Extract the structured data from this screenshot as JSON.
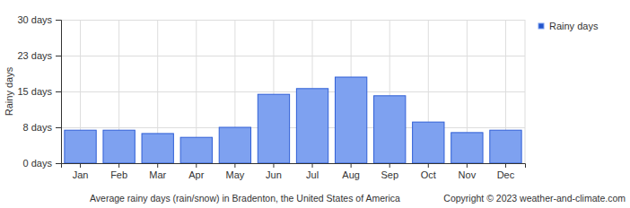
{
  "chart_data": {
    "type": "bar",
    "title": "Average rainy days (rain/snow) in Bradenton, the United States of America",
    "annotation": "Copyright © 2023  weather-and-climate.com",
    "y_label": "Rainy days",
    "categories": [
      "Jan",
      "Feb",
      "Mar",
      "Apr",
      "May",
      "Jun",
      "Jul",
      "Aug",
      "Sep",
      "Oct",
      "Nov",
      "Dec"
    ],
    "series": [
      {
        "name": "Rainy days",
        "color": "#7ea1f0",
        "values": [
          6.9,
          6.9,
          6.2,
          5.4,
          7.5,
          14.4,
          15.6,
          18.0,
          14.1,
          8.6,
          6.4,
          6.9
        ]
      }
    ],
    "ylim": [
      0,
      30
    ],
    "yticks": [
      {
        "value": 0,
        "label": "0 days"
      },
      {
        "value": 7.5,
        "label": "8 days"
      },
      {
        "value": 15,
        "label": "15 days"
      },
      {
        "value": 22.5,
        "label": "23 days"
      },
      {
        "value": 30,
        "label": "30 days"
      }
    ],
    "grid": true,
    "legend": "top-right"
  }
}
